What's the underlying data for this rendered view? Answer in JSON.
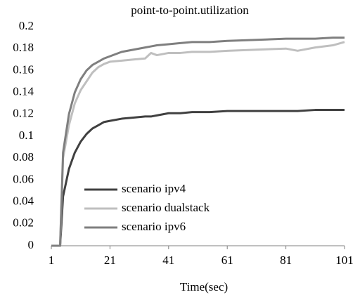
{
  "chart_data": {
    "type": "line",
    "title": "point-to-point.utilization",
    "x_label": "Time(sec)",
    "x": [
      1,
      4,
      5,
      7,
      9,
      11,
      13,
      15,
      17,
      19,
      21,
      25,
      29,
      33,
      35,
      37,
      41,
      45,
      49,
      55,
      61,
      71,
      81,
      85,
      91,
      97,
      101
    ],
    "series": [
      {
        "name": "scenario ipv4",
        "color": "#404040",
        "values": [
          0,
          0,
          0.045,
          0.07,
          0.085,
          0.095,
          0.102,
          0.107,
          0.11,
          0.113,
          0.114,
          0.116,
          0.117,
          0.118,
          0.118,
          0.119,
          0.121,
          0.121,
          0.122,
          0.122,
          0.123,
          0.123,
          0.123,
          0.123,
          0.124,
          0.124,
          0.124
        ]
      },
      {
        "name": "scenario dualstack",
        "color": "#bfbfbf",
        "values": [
          0,
          0,
          0.08,
          0.11,
          0.13,
          0.142,
          0.15,
          0.158,
          0.163,
          0.166,
          0.168,
          0.169,
          0.17,
          0.171,
          0.176,
          0.174,
          0.176,
          0.176,
          0.177,
          0.177,
          0.178,
          0.179,
          0.18,
          0.178,
          0.181,
          0.183,
          0.186
        ]
      },
      {
        "name": "scenario ipv6",
        "color": "#7f7f7f",
        "values": [
          0,
          0,
          0.085,
          0.12,
          0.14,
          0.152,
          0.16,
          0.165,
          0.168,
          0.171,
          0.173,
          0.177,
          0.179,
          0.181,
          0.182,
          0.183,
          0.184,
          0.185,
          0.186,
          0.186,
          0.187,
          0.188,
          0.189,
          0.189,
          0.189,
          0.19,
          0.19
        ]
      }
    ],
    "xlim": [
      1,
      101
    ],
    "xticks": [
      1,
      21,
      41,
      61,
      81,
      101
    ],
    "ylim": [
      0,
      0.2
    ],
    "yticks": [
      0,
      0.02,
      0.04,
      0.06,
      0.08,
      0.1,
      0.12,
      0.14,
      0.16,
      0.18,
      0.2
    ],
    "grid": false,
    "legend": "left"
  }
}
